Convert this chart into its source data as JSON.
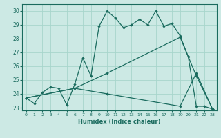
{
  "title": "",
  "xlabel": "Humidex (Indice chaleur)",
  "bg_color": "#cce9e4",
  "grid_color": "#a8d5cc",
  "line_color": "#1a6b5e",
  "xlim": [
    -0.5,
    23.5
  ],
  "ylim": [
    22.8,
    30.5
  ],
  "xticks": [
    0,
    1,
    2,
    3,
    4,
    5,
    6,
    7,
    8,
    9,
    10,
    11,
    12,
    13,
    14,
    15,
    16,
    17,
    18,
    19,
    20,
    21,
    22,
    23
  ],
  "yticks": [
    23,
    24,
    25,
    26,
    27,
    28,
    29,
    30
  ],
  "line1_x": [
    0,
    1,
    2,
    3,
    4,
    5,
    6,
    7,
    8,
    9,
    10,
    11,
    12,
    13,
    14,
    15,
    16,
    17,
    18,
    19,
    20,
    21,
    22,
    23
  ],
  "line1_y": [
    23.7,
    23.3,
    24.1,
    24.5,
    24.4,
    23.2,
    24.7,
    26.6,
    25.3,
    28.9,
    30.0,
    29.5,
    28.8,
    29.0,
    29.4,
    29.0,
    30.0,
    28.9,
    29.1,
    28.2,
    26.7,
    23.1,
    23.1,
    22.9
  ],
  "line2_x": [
    0,
    6,
    10,
    19,
    21,
    23
  ],
  "line2_y": [
    23.7,
    24.4,
    25.5,
    28.1,
    25.3,
    22.9
  ],
  "line3_x": [
    0,
    6,
    10,
    19,
    21,
    23
  ],
  "line3_y": [
    23.7,
    24.4,
    24.0,
    23.1,
    25.5,
    22.9
  ]
}
